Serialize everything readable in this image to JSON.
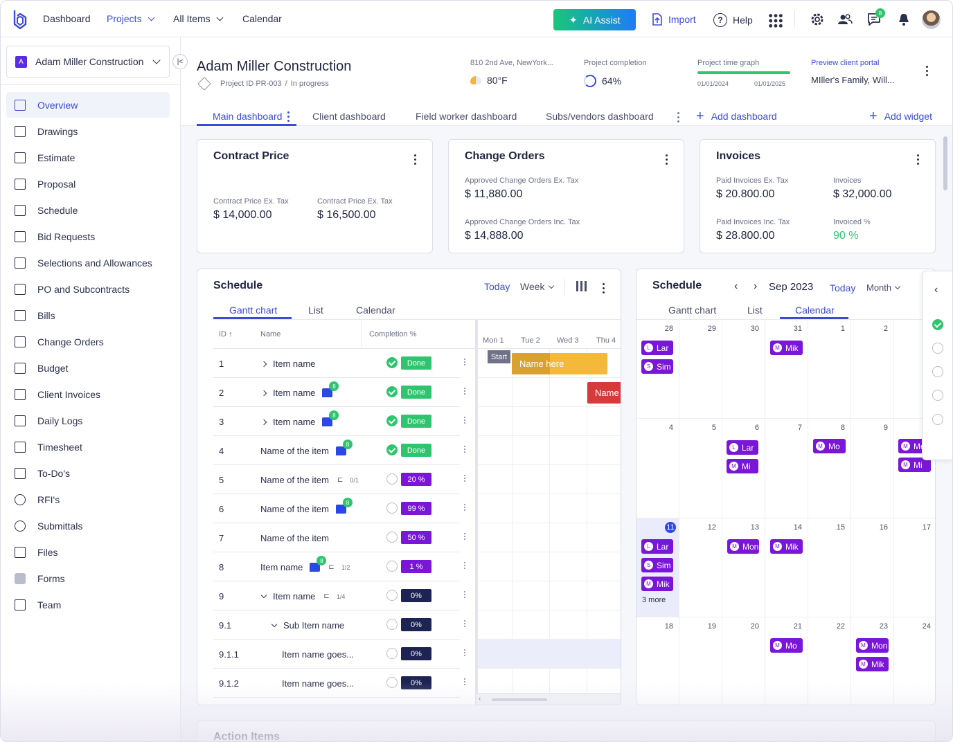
{
  "topnav": {
    "items": [
      "Dashboard",
      "Projects",
      "All Items",
      "Calendar"
    ],
    "ai_assist": "AI Assist",
    "import": "Import",
    "help": "Help",
    "messages_badge": "8"
  },
  "sidebar": {
    "project_initial": "A",
    "project_name": "Adam Miller Construction",
    "items": [
      {
        "label": "Overview",
        "icon": "presentation-icon"
      },
      {
        "label": "Drawings",
        "icon": "drawing-icon"
      },
      {
        "label": "Estimate",
        "icon": "calculator-icon"
      },
      {
        "label": "Proposal",
        "icon": "proposal-icon"
      },
      {
        "label": "Schedule",
        "icon": "calendar-icon"
      },
      {
        "label": "Bid Requests",
        "icon": "gavel-icon"
      },
      {
        "label": "Selections and Allowances",
        "icon": "monitor-icon"
      },
      {
        "label": "PO and Subcontracts",
        "icon": "cart-icon"
      },
      {
        "label": "Bills",
        "icon": "bill-icon"
      },
      {
        "label": "Change Orders",
        "icon": "change-icon"
      },
      {
        "label": "Budget",
        "icon": "budget-icon"
      },
      {
        "label": "Client Invoices",
        "icon": "invoice-icon"
      },
      {
        "label": "Daily Logs",
        "icon": "log-icon"
      },
      {
        "label": "Timesheet",
        "icon": "timesheet-icon"
      },
      {
        "label": "To-Do's",
        "icon": "checklist-icon"
      },
      {
        "label": "RFI's",
        "icon": "question-icon"
      },
      {
        "label": "Submittals",
        "icon": "upload-icon"
      },
      {
        "label": "Files",
        "icon": "file-icon"
      },
      {
        "label": "Forms",
        "icon": "form-icon"
      },
      {
        "label": "Team",
        "icon": "team-icon"
      }
    ]
  },
  "header": {
    "title": "Adam Miller Construction",
    "project_id": "Project ID PR-003",
    "separator": "/",
    "status": "In progress",
    "address": "810 2nd Ave, NewYork...",
    "temperature": "80°F",
    "completion_label": "Project completion",
    "completion_value": "64%",
    "time_graph_label": "Project time graph",
    "time_graph_start": "01/01/2024",
    "time_graph_end": "01/01/2025",
    "portal_label": "Preview client portal",
    "portal_value": "MIller's Family, Will..."
  },
  "dashboard_tabs": {
    "tabs": [
      "Main dashboard",
      "Client dashboard",
      "Field worker dashboard",
      "Subs/vendors dashboard"
    ],
    "add_dashboard": "Add dashboard",
    "add_widget": "Add widget"
  },
  "contract_price": {
    "title": "Contract Price",
    "ex_tax_label": "Contract Price Ex. Tax",
    "ex_tax_value": "$ 14,000.00",
    "inc_tax_label": "Contract Price Ex. Tax",
    "inc_tax_value": "$ 16,500.00"
  },
  "change_orders": {
    "title": "Change Orders",
    "ex_label": "Approved Change Orders Ex. Tax",
    "ex_value": "$ 11,880.00",
    "inc_label": "Approved Change Orders Inc. Tax",
    "inc_value": "$ 14,888.00"
  },
  "invoices": {
    "title": "Invoices",
    "paid_ex_label": "Paid Invoices Ex. Tax",
    "paid_ex_value": "$ 20.800.00",
    "invoices_label": "Invoices",
    "invoices_value": "$ 32,000.00",
    "paid_inc_label": "Paid Invoices Inc. Tax",
    "paid_inc_value": "$ 28.800.00",
    "invoiced_label": "Invoiced %",
    "invoiced_value": "90 %"
  },
  "gantt": {
    "title": "Schedule",
    "today": "Today",
    "range": "Week",
    "tabs": [
      "Gantt chart",
      "List",
      "Calendar"
    ],
    "columns": [
      "ID",
      "Name",
      "Completion %"
    ],
    "days": [
      "Mon 1",
      "Tue 2",
      "Wed 3",
      "Thu 4"
    ],
    "start_label": "Start",
    "bar1_label": "Name here",
    "bar2_label": "Name",
    "rows": [
      {
        "id": "1",
        "name": "Item name",
        "status": "Done"
      },
      {
        "id": "2",
        "name": "Item name",
        "status": "Done",
        "comments": "8"
      },
      {
        "id": "3",
        "name": "Item name",
        "status": "Done",
        "comments": "8"
      },
      {
        "id": "4",
        "name": "Name of the item",
        "status": "Done",
        "comments": "8"
      },
      {
        "id": "5",
        "name": "Name of the item",
        "status": "20 %",
        "fraction": "0/1"
      },
      {
        "id": "6",
        "name": "Name of the item",
        "status": "99 %",
        "comments": "8"
      },
      {
        "id": "7",
        "name": "Name of the item",
        "status": "50 %"
      },
      {
        "id": "8",
        "name": "Item name",
        "status": "1 %",
        "comments": "8",
        "fraction": "1/2"
      },
      {
        "id": "9",
        "name": "Item name",
        "status": "0%",
        "fraction": "1/4"
      },
      {
        "id": "9.1",
        "name": "Sub Item name",
        "status": "0%"
      },
      {
        "id": "9.1.1",
        "name": "Item name goes...",
        "status": "0%"
      },
      {
        "id": "9.1.2",
        "name": "Item name goes...",
        "status": "0%"
      }
    ]
  },
  "calendar": {
    "title": "Schedule",
    "month": "Sep 2023",
    "today": "Today",
    "range": "Month",
    "tabs": [
      "Gantt chart",
      "List",
      "Calendar"
    ],
    "more": "3 more",
    "weeks": [
      [
        "28",
        "29",
        "30",
        "31",
        "1",
        "2",
        ""
      ],
      [
        "4",
        "5",
        "6",
        "7",
        "8",
        "9",
        ""
      ],
      [
        "11",
        "12",
        "13",
        "14",
        "15",
        "16",
        "17"
      ],
      [
        "18",
        "19",
        "20",
        "21",
        "22",
        "23",
        "24"
      ]
    ],
    "events": [
      {
        "initial": "L",
        "label": "Lar"
      },
      {
        "initial": "S",
        "label": "Sim"
      },
      {
        "initial": "M",
        "label": "Mik"
      },
      {
        "initial": "L",
        "label": "Lar"
      },
      {
        "initial": "M",
        "label": "Mi"
      },
      {
        "initial": "M",
        "label": "Mo"
      },
      {
        "initial": "M",
        "label": "Mo"
      },
      {
        "initial": "M",
        "label": "Mi"
      },
      {
        "initial": "L",
        "label": "Lar"
      },
      {
        "initial": "S",
        "label": "Sim"
      },
      {
        "initial": "M",
        "label": "Mik"
      },
      {
        "initial": "M",
        "label": "Mon"
      },
      {
        "initial": "M",
        "label": "Mik"
      },
      {
        "initial": "M",
        "label": "Mo"
      },
      {
        "initial": "M",
        "label": "Mon"
      },
      {
        "initial": "M",
        "label": "Mik"
      }
    ]
  },
  "action_items": {
    "title": "Action Items"
  },
  "colors": {
    "accent": "#3b4bd8",
    "success": "#2fc56e",
    "event": "#7a16d8",
    "navy": "#1d2454"
  }
}
